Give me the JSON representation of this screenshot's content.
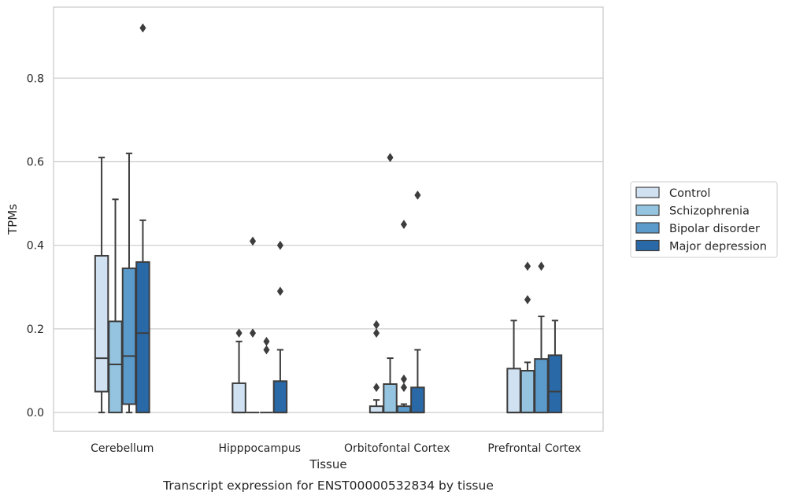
{
  "chart_data": {
    "type": "box",
    "title": "",
    "caption": "Transcript expression for ENST00000532834 by tissue",
    "xlabel": "Tissue",
    "ylabel": "TPMs",
    "ylim": [
      -0.045,
      0.97
    ],
    "yticks": [
      0.0,
      0.2,
      0.4,
      0.6,
      0.8
    ],
    "ytick_labels": [
      "0.0",
      "0.2",
      "0.4",
      "0.6",
      "0.8"
    ],
    "grid": "horizontal",
    "legend_position": "right",
    "categories": [
      "Cerebellum",
      "Hipppocampus",
      "Orbitofontal Cortex",
      "Prefrontal Cortex"
    ],
    "series": [
      {
        "name": "Control",
        "color": "#d0e1f2",
        "boxes": [
          {
            "whislo": 0.0,
            "q1": 0.05,
            "med": 0.13,
            "q3": 0.375,
            "whishi": 0.61,
            "fliers": []
          },
          {
            "whislo": 0.0,
            "q1": 0.0,
            "med": 0.0,
            "q3": 0.07,
            "whishi": 0.17,
            "fliers": [
              0.19
            ]
          },
          {
            "whislo": 0.0,
            "q1": 0.0,
            "med": 0.0,
            "q3": 0.015,
            "whishi": 0.03,
            "fliers": [
              0.06,
              0.19,
              0.21
            ]
          },
          {
            "whislo": 0.0,
            "q1": 0.0,
            "med": 0.0,
            "q3": 0.105,
            "whishi": 0.22,
            "fliers": []
          }
        ]
      },
      {
        "name": "Schizophrenia",
        "color": "#94c4df",
        "boxes": [
          {
            "whislo": 0.0,
            "q1": 0.0,
            "med": 0.115,
            "q3": 0.218,
            "whishi": 0.51,
            "fliers": []
          },
          {
            "whislo": 0.0,
            "q1": 0.0,
            "med": 0.0,
            "q3": 0.0,
            "whishi": 0.0,
            "fliers": [
              0.19,
              0.41
            ]
          },
          {
            "whislo": 0.0,
            "q1": 0.0,
            "med": 0.0,
            "q3": 0.068,
            "whishi": 0.13,
            "fliers": [
              0.61
            ]
          },
          {
            "whislo": 0.0,
            "q1": 0.0,
            "med": 0.0,
            "q3": 0.1,
            "whishi": 0.12,
            "fliers": [
              0.27,
              0.35
            ]
          }
        ]
      },
      {
        "name": "Bipolar disorder",
        "color": "#5b9bcb",
        "boxes": [
          {
            "whislo": 0.0,
            "q1": 0.02,
            "med": 0.135,
            "q3": 0.345,
            "whishi": 0.62,
            "fliers": []
          },
          {
            "whislo": 0.0,
            "q1": 0.0,
            "med": 0.0,
            "q3": 0.0,
            "whishi": 0.0,
            "fliers": [
              0.15,
              0.17
            ]
          },
          {
            "whislo": 0.0,
            "q1": 0.0,
            "med": 0.0,
            "q3": 0.015,
            "whishi": 0.02,
            "fliers": [
              0.06,
              0.08,
              0.45
            ]
          },
          {
            "whislo": 0.0,
            "q1": 0.0,
            "med": 0.0,
            "q3": 0.128,
            "whishi": 0.23,
            "fliers": [
              0.35
            ]
          }
        ]
      },
      {
        "name": "Major depression",
        "color": "#2a69a8",
        "boxes": [
          {
            "whislo": 0.0,
            "q1": 0.0,
            "med": 0.19,
            "q3": 0.36,
            "whishi": 0.46,
            "fliers": [
              0.92
            ]
          },
          {
            "whislo": 0.0,
            "q1": 0.0,
            "med": 0.0,
            "q3": 0.075,
            "whishi": 0.15,
            "fliers": [
              0.29,
              0.4
            ]
          },
          {
            "whislo": 0.0,
            "q1": 0.0,
            "med": 0.0,
            "q3": 0.06,
            "whishi": 0.15,
            "fliers": [
              0.52
            ]
          },
          {
            "whislo": 0.0,
            "q1": 0.0,
            "med": 0.05,
            "q3": 0.137,
            "whishi": 0.22,
            "fliers": []
          }
        ]
      }
    ]
  }
}
